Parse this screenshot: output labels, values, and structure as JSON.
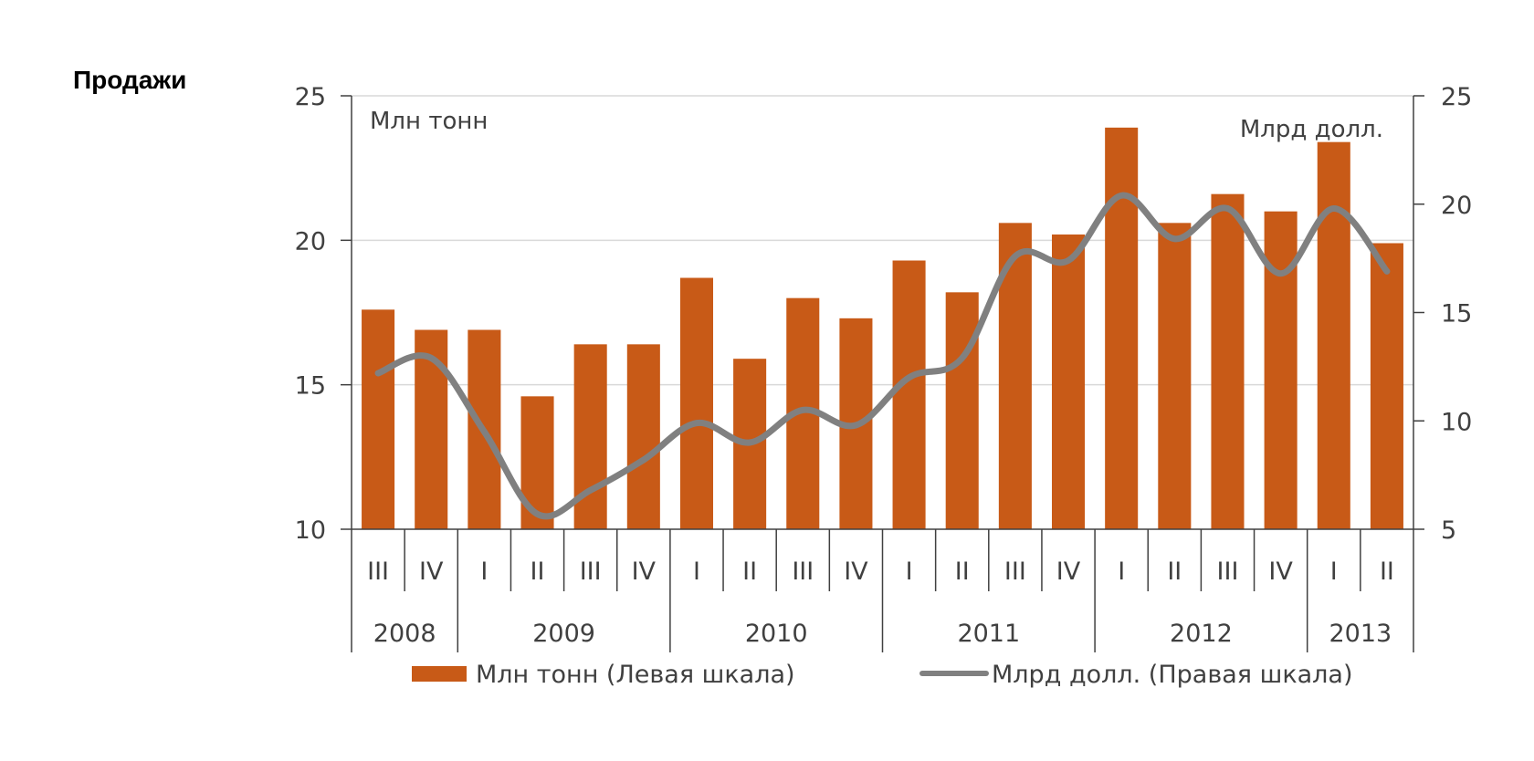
{
  "heading": "Продажи",
  "colors": {
    "bar": "#C85A17",
    "line": "#808080",
    "grid": "#D9D9D9",
    "axis": "#404040",
    "text": "#404040"
  },
  "chart_data": {
    "type": "bar",
    "title": "Продажи",
    "left_unit": "Млн тонн",
    "right_unit": "Млрд долл.",
    "left_axis": {
      "min": 10,
      "max": 25,
      "ticks": [
        10,
        15,
        20,
        25
      ]
    },
    "right_axis": {
      "min": 5,
      "max": 25,
      "ticks": [
        5,
        10,
        15,
        20,
        25
      ]
    },
    "quarters": [
      "III",
      "IV",
      "I",
      "II",
      "III",
      "IV",
      "I",
      "II",
      "III",
      "IV",
      "I",
      "II",
      "III",
      "IV",
      "I",
      "II",
      "III",
      "IV",
      "I",
      "II"
    ],
    "years": [
      {
        "label": "2008",
        "count": 2
      },
      {
        "label": "2009",
        "count": 4
      },
      {
        "label": "2010",
        "count": 4
      },
      {
        "label": "2011",
        "count": 4
      },
      {
        "label": "2012",
        "count": 4
      },
      {
        "label": "2013",
        "count": 2
      }
    ],
    "grid": true,
    "legend_position": "bottom",
    "series": [
      {
        "name": "Млн тонн (Левая шкала)",
        "type": "bar",
        "axis": "left",
        "values": [
          17.6,
          16.9,
          16.9,
          14.6,
          16.4,
          16.4,
          18.7,
          15.9,
          18.0,
          17.3,
          19.3,
          18.2,
          20.6,
          20.2,
          23.9,
          20.6,
          21.6,
          21.0,
          23.4,
          19.9
        ]
      },
      {
        "name": "Млрд долл. (Правая шкала)",
        "type": "line",
        "axis": "right",
        "values": [
          12.2,
          12.9,
          9.5,
          5.7,
          6.8,
          8.2,
          9.9,
          9.0,
          10.5,
          9.8,
          12.0,
          12.9,
          17.6,
          17.4,
          20.4,
          18.4,
          19.8,
          16.8,
          19.8,
          16.9
        ]
      }
    ]
  }
}
